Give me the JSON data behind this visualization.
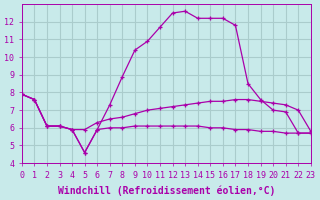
{
  "bg_color": "#c8eaea",
  "line_color": "#aa00aa",
  "grid_color": "#aacccc",
  "xlabel": "Windchill (Refroidissement éolien,°C)",
  "xlabel_fontsize": 7,
  "tick_fontsize": 6,
  "xlim": [
    0,
    23
  ],
  "ylim": [
    4,
    13
  ],
  "yticks": [
    4,
    5,
    6,
    7,
    8,
    9,
    10,
    11,
    12
  ],
  "xticks": [
    0,
    1,
    2,
    3,
    4,
    5,
    6,
    7,
    8,
    9,
    10,
    11,
    12,
    13,
    14,
    15,
    16,
    17,
    18,
    19,
    20,
    21,
    22,
    23
  ],
  "curve1_x": [
    0,
    1,
    2,
    3,
    4,
    5,
    6,
    7,
    8,
    9,
    10,
    11,
    12,
    13,
    14,
    15,
    16,
    17,
    18,
    19,
    20,
    21,
    22,
    23
  ],
  "curve1_y": [
    7.9,
    7.6,
    6.1,
    6.1,
    5.9,
    4.6,
    5.9,
    7.3,
    8.9,
    10.4,
    10.9,
    11.7,
    12.5,
    12.6,
    12.2,
    12.2,
    12.2,
    11.8,
    8.5,
    7.6,
    7.0,
    6.9,
    5.7,
    5.7
  ],
  "curve2_x": [
    0,
    1,
    2,
    3,
    4,
    5,
    6,
    7,
    8,
    9,
    10,
    11,
    12,
    13,
    14,
    15,
    16,
    17,
    18,
    19,
    20,
    21,
    22,
    23
  ],
  "curve2_y": [
    7.9,
    7.6,
    6.1,
    6.1,
    5.9,
    5.9,
    6.3,
    6.5,
    6.6,
    6.8,
    7.0,
    7.1,
    7.2,
    7.3,
    7.4,
    7.5,
    7.5,
    7.6,
    7.6,
    7.5,
    7.4,
    7.3,
    7.0,
    5.8
  ],
  "curve3_x": [
    0,
    1,
    2,
    3,
    4,
    5,
    6,
    7,
    8,
    9,
    10,
    11,
    12,
    13,
    14,
    15,
    16,
    17,
    18,
    19,
    20,
    21,
    22,
    23
  ],
  "curve3_y": [
    7.9,
    7.6,
    6.1,
    6.1,
    5.9,
    4.6,
    5.9,
    6.0,
    6.0,
    6.1,
    6.1,
    6.1,
    6.1,
    6.1,
    6.1,
    6.0,
    6.0,
    5.9,
    5.9,
    5.8,
    5.8,
    5.7,
    5.7,
    5.7
  ]
}
